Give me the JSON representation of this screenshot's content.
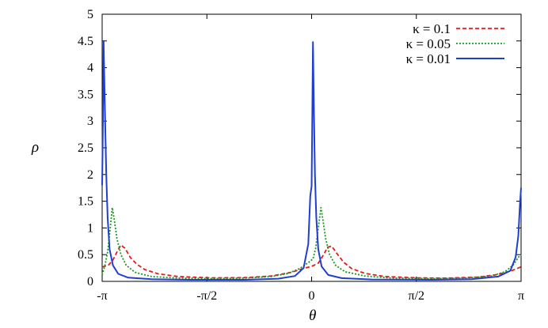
{
  "chart_data": {
    "type": "line",
    "title": "",
    "xlabel": "θ",
    "ylabel": "ρ",
    "xlim": [
      -3.14159,
      3.14159
    ],
    "ylim": [
      0,
      5
    ],
    "grid": false,
    "legend_position": "top-right",
    "x_ticks": [
      {
        "value": -3.14159,
        "label": "-π"
      },
      {
        "value": -1.5708,
        "label": "-π/2"
      },
      {
        "value": 0,
        "label": "0"
      },
      {
        "value": 1.5708,
        "label": "π/2"
      },
      {
        "value": 3.14159,
        "label": "π"
      }
    ],
    "y_ticks": [
      {
        "value": 0,
        "label": "0"
      },
      {
        "value": 0.5,
        "label": "0.5"
      },
      {
        "value": 1,
        "label": "1"
      },
      {
        "value": 1.5,
        "label": "1.5"
      },
      {
        "value": 2,
        "label": "2"
      },
      {
        "value": 2.5,
        "label": "2.5"
      },
      {
        "value": 3,
        "label": "3"
      },
      {
        "value": 3.5,
        "label": "3.5"
      },
      {
        "value": 4,
        "label": "4"
      },
      {
        "value": 4.5,
        "label": "4.5"
      },
      {
        "value": 5,
        "label": "5"
      }
    ],
    "series": [
      {
        "name": "κ = 0.1",
        "color": "#e31a1c",
        "dash": "dashed",
        "points": [
          [
            -3.14159,
            0.27
          ],
          [
            -3.05,
            0.3
          ],
          [
            -2.98,
            0.4
          ],
          [
            -2.92,
            0.55
          ],
          [
            -2.86,
            0.68
          ],
          [
            -2.8,
            0.62
          ],
          [
            -2.72,
            0.45
          ],
          [
            -2.62,
            0.32
          ],
          [
            -2.5,
            0.22
          ],
          [
            -2.3,
            0.14
          ],
          [
            -2.0,
            0.09
          ],
          [
            -1.5,
            0.065
          ],
          [
            -1.0,
            0.07
          ],
          [
            -0.6,
            0.1
          ],
          [
            -0.3,
            0.17
          ],
          [
            -0.1,
            0.25
          ],
          [
            0.0,
            0.28
          ],
          [
            0.1,
            0.34
          ],
          [
            0.18,
            0.5
          ],
          [
            0.24,
            0.64
          ],
          [
            0.3,
            0.66
          ],
          [
            0.38,
            0.52
          ],
          [
            0.48,
            0.36
          ],
          [
            0.6,
            0.24
          ],
          [
            0.8,
            0.15
          ],
          [
            1.1,
            0.09
          ],
          [
            1.6,
            0.065
          ],
          [
            2.0,
            0.06
          ],
          [
            2.5,
            0.08
          ],
          [
            2.8,
            0.13
          ],
          [
            3.0,
            0.2
          ],
          [
            3.14159,
            0.27
          ]
        ]
      },
      {
        "name": "κ = 0.05",
        "color": "#1a9a1a",
        "dash": "dotted",
        "points": [
          [
            -3.14159,
            0.12
          ],
          [
            -3.1,
            0.3
          ],
          [
            -3.06,
            0.55
          ],
          [
            -3.02,
            1.0
          ],
          [
            -2.99,
            1.38
          ],
          [
            -2.96,
            1.15
          ],
          [
            -2.92,
            0.8
          ],
          [
            -2.86,
            0.5
          ],
          [
            -2.78,
            0.3
          ],
          [
            -2.65,
            0.17
          ],
          [
            -2.4,
            0.09
          ],
          [
            -2.0,
            0.06
          ],
          [
            -1.5,
            0.05
          ],
          [
            -1.0,
            0.06
          ],
          [
            -0.6,
            0.09
          ],
          [
            -0.35,
            0.15
          ],
          [
            -0.18,
            0.24
          ],
          [
            -0.05,
            0.35
          ],
          [
            0.02,
            0.42
          ],
          [
            0.06,
            0.62
          ],
          [
            0.1,
            1.0
          ],
          [
            0.14,
            1.38
          ],
          [
            0.17,
            1.15
          ],
          [
            0.21,
            0.8
          ],
          [
            0.27,
            0.5
          ],
          [
            0.36,
            0.3
          ],
          [
            0.5,
            0.18
          ],
          [
            0.8,
            0.1
          ],
          [
            1.2,
            0.06
          ],
          [
            1.8,
            0.05
          ],
          [
            2.3,
            0.06
          ],
          [
            2.7,
            0.1
          ],
          [
            2.9,
            0.18
          ],
          [
            3.02,
            0.3
          ],
          [
            3.1,
            0.45
          ],
          [
            3.14159,
            0.5
          ]
        ]
      },
      {
        "name": "κ = 0.01",
        "color": "#1f3fd1",
        "dash": "solid",
        "points": [
          [
            -3.14159,
            1.8
          ],
          [
            -3.13,
            3.0
          ],
          [
            -3.12,
            4.5
          ],
          [
            -3.1,
            3.2
          ],
          [
            -3.08,
            2.0
          ],
          [
            -3.06,
            1.2
          ],
          [
            -3.03,
            0.6
          ],
          [
            -2.98,
            0.3
          ],
          [
            -2.9,
            0.14
          ],
          [
            -2.75,
            0.07
          ],
          [
            -2.4,
            0.04
          ],
          [
            -1.8,
            0.03
          ],
          [
            -1.0,
            0.03
          ],
          [
            -0.5,
            0.05
          ],
          [
            -0.25,
            0.1
          ],
          [
            -0.12,
            0.25
          ],
          [
            -0.05,
            0.7
          ],
          [
            -0.02,
            1.6
          ],
          [
            0.0,
            1.78
          ],
          [
            0.01,
            3.0
          ],
          [
            0.02,
            4.48
          ],
          [
            0.035,
            3.2
          ],
          [
            0.05,
            2.0
          ],
          [
            0.07,
            1.2
          ],
          [
            0.1,
            0.6
          ],
          [
            0.15,
            0.28
          ],
          [
            0.25,
            0.12
          ],
          [
            0.45,
            0.06
          ],
          [
            0.9,
            0.035
          ],
          [
            1.8,
            0.03
          ],
          [
            2.4,
            0.04
          ],
          [
            2.8,
            0.09
          ],
          [
            2.98,
            0.2
          ],
          [
            3.06,
            0.45
          ],
          [
            3.1,
            0.85
          ],
          [
            3.125,
            1.45
          ],
          [
            3.14159,
            1.75
          ]
        ]
      }
    ]
  }
}
